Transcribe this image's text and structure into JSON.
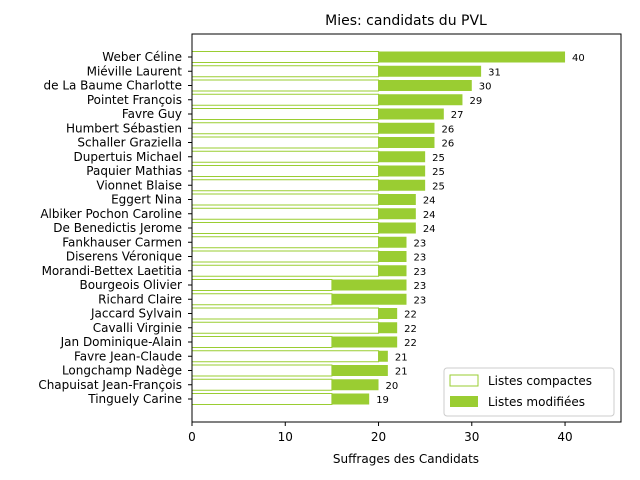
{
  "chart_data": {
    "type": "bar",
    "orientation": "horizontal",
    "stacked": true,
    "title": "Mies: candidats du PVL",
    "xlabel": "Suffrages des Candidats",
    "xlim": [
      0,
      46
    ],
    "xticks": [
      0,
      10,
      20,
      30,
      40
    ],
    "grid": false,
    "legend_position": "lower-right",
    "colors": {
      "compact_edge": "#9acd32",
      "compact_fill": "#ffffff",
      "modified_fill": "#9acd32"
    },
    "categories": [
      "Weber Céline",
      "Miéville Laurent",
      "de La Baume Charlotte",
      "Pointet François",
      "Favre Guy",
      "Humbert Sébastien",
      "Schaller Graziella",
      "Dupertuis Michael",
      "Paquier Mathias",
      "Vionnet Blaise",
      "Eggert Nina",
      "Albiker Pochon Caroline",
      "De Benedictis Jerome",
      "Fankhauser Carmen",
      "Diserens Véronique",
      "Morandi-Bettex Laetitia",
      "Bourgeois Olivier",
      "Richard Claire",
      "Jaccard Sylvain",
      "Cavalli Virginie",
      "Jan Dominique-Alain",
      "Favre Jean-Claude",
      "Longchamp Nadège",
      "Chapuisat Jean-François",
      "Tinguely Carine"
    ],
    "series": [
      {
        "name": "Listes compactes",
        "values": [
          20,
          20,
          20,
          20,
          20,
          20,
          20,
          20,
          20,
          20,
          20,
          20,
          20,
          20,
          20,
          20,
          15,
          15,
          20,
          20,
          15,
          20,
          15,
          15,
          15
        ]
      },
      {
        "name": "Listes modifiées",
        "values": [
          20,
          11,
          10,
          9,
          7,
          6,
          6,
          5,
          5,
          5,
          4,
          4,
          4,
          3,
          3,
          3,
          8,
          8,
          2,
          2,
          7,
          1,
          6,
          5,
          4
        ]
      }
    ],
    "totals": [
      40,
      31,
      30,
      29,
      27,
      26,
      26,
      25,
      25,
      25,
      24,
      24,
      24,
      23,
      23,
      23,
      23,
      23,
      22,
      22,
      22,
      21,
      21,
      20,
      19
    ]
  }
}
